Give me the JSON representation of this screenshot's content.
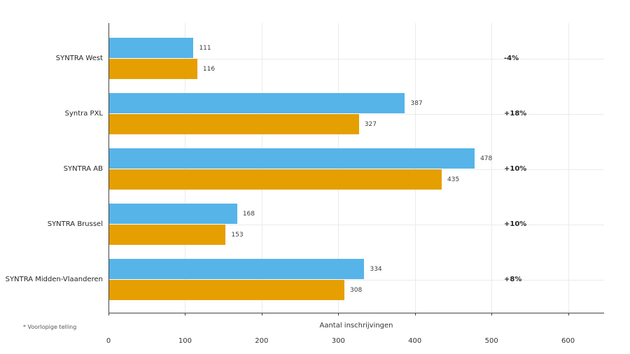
{
  "chart_data": {
    "type": "bar",
    "orientation": "horizontal",
    "title": "",
    "xlabel": "Aantal inschrijvingen",
    "ylabel": "",
    "categories": [
      "SYNTRA West",
      "Syntra PXL",
      "SYNTRA AB",
      "SYNTRA Brussel",
      "SYNTRA Midden-Vlaanderen"
    ],
    "series": [
      {
        "name": "blue",
        "color": "#56B4E9",
        "values": [
          111,
          387,
          478,
          168,
          334
        ]
      },
      {
        "name": "orange",
        "color": "#E69F00",
        "values": [
          116,
          327,
          435,
          153,
          308
        ]
      }
    ],
    "change_labels": [
      "-4%",
      "+18%",
      "+10%",
      "+10%",
      "+8%"
    ],
    "xticks": [
      0,
      100,
      200,
      300,
      400,
      500,
      600
    ],
    "xlim": [
      0,
      647
    ],
    "grid": true,
    "legend": false
  },
  "footnote": "* Voorlopige telling",
  "colors": {
    "grid": "#ebebeb",
    "axis": "#444444"
  }
}
